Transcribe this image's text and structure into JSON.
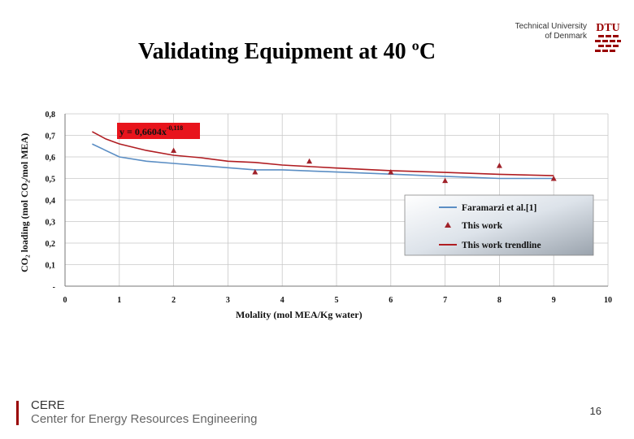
{
  "slide": {
    "title": "Validating Equipment at 40 ºC",
    "page_number": "16"
  },
  "header": {
    "university_line1": "Technical University",
    "university_line2": "of Denmark",
    "logo_text": "DTU"
  },
  "footer": {
    "org_short": "CERE",
    "org_full": "Center for Energy Resources Engineering"
  },
  "colors": {
    "reference_series": "#5b8ec4",
    "this_work": "#a0222a",
    "trendline": "#b01d22",
    "equation_bg": "#e8141c",
    "brand": "#990000"
  },
  "chart_data": {
    "type": "line",
    "title": "",
    "xlabel": "Molality (mol MEA/Kg water)",
    "ylabel": "CO₂ loading (mol CO₂/mol MEA)",
    "xlim": [
      0,
      10
    ],
    "ylim": [
      0,
      0.8
    ],
    "x_ticks": [
      "0",
      "1",
      "2",
      "3",
      "4",
      "5",
      "6",
      "7",
      "8",
      "9",
      "10"
    ],
    "y_ticks": [
      "-",
      "0,1",
      "0,2",
      "0,3",
      "0,4",
      "0,5",
      "0,6",
      "0,7",
      "0,8"
    ],
    "grid": true,
    "equation": "y = 0,6604x",
    "equation_exponent": "-0,118",
    "legend_position": "right",
    "series": [
      {
        "name": "Faramarzi et al.[1]",
        "kind": "line",
        "x": [
          0.5,
          1,
          1.5,
          2,
          3,
          3.5,
          4,
          5,
          6,
          7,
          8,
          9
        ],
        "y": [
          0.66,
          0.6,
          0.58,
          0.57,
          0.55,
          0.54,
          0.54,
          0.53,
          0.52,
          0.51,
          0.5,
          0.5
        ]
      },
      {
        "name": "This work",
        "kind": "marker",
        "x": [
          2,
          3.5,
          4.5,
          6,
          7,
          8,
          9
        ],
        "y": [
          0.63,
          0.53,
          0.58,
          0.53,
          0.49,
          0.56,
          0.5
        ]
      },
      {
        "name": "This work trendline",
        "kind": "line",
        "x": [
          0.5,
          0.75,
          1,
          1.5,
          2,
          2.5,
          3,
          3.5,
          4,
          5,
          6,
          7,
          8,
          9
        ],
        "y": [
          0.7172,
          0.6835,
          0.6604,
          0.6299,
          0.6077,
          0.5963,
          0.5799,
          0.5744,
          0.5624,
          0.5484,
          0.5363,
          0.528,
          0.5192,
          0.5128
        ]
      }
    ]
  }
}
